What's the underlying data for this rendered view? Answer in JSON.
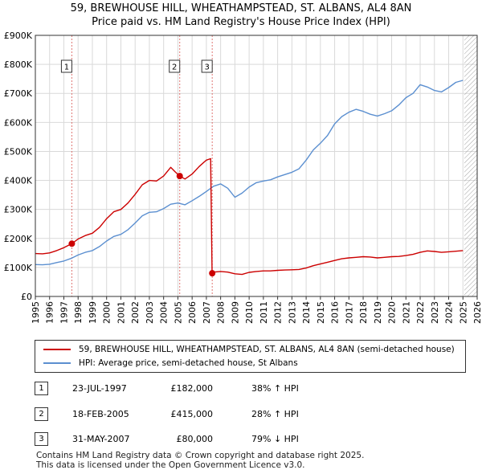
{
  "chart_data": {
    "type": "line",
    "title": "59, BREWHOUSE HILL, WHEATHAMPSTEAD, ST. ALBANS, AL4 8AN",
    "subtitle": "Price paid vs. HM Land Registry's House Price Index (HPI)",
    "xlim": [
      1995,
      2026
    ],
    "ylim": [
      0,
      900000
    ],
    "x_ticks": [
      "1995",
      "1996",
      "1997",
      "1998",
      "1999",
      "2000",
      "2001",
      "2002",
      "2003",
      "2004",
      "2005",
      "2006",
      "2007",
      "2008",
      "2009",
      "2010",
      "2011",
      "2012",
      "2013",
      "2014",
      "2015",
      "2016",
      "2017",
      "2018",
      "2019",
      "2020",
      "2021",
      "2022",
      "2023",
      "2024",
      "2025",
      "2026"
    ],
    "y_ticks": [
      {
        "value": 0,
        "label": "£0"
      },
      {
        "value": 100000,
        "label": "£100K"
      },
      {
        "value": 200000,
        "label": "£200K"
      },
      {
        "value": 300000,
        "label": "£300K"
      },
      {
        "value": 400000,
        "label": "£400K"
      },
      {
        "value": 500000,
        "label": "£500K"
      },
      {
        "value": 600000,
        "label": "£600K"
      },
      {
        "value": 700000,
        "label": "£700K"
      },
      {
        "value": 800000,
        "label": "£800K"
      },
      {
        "value": 900000,
        "label": "£900K"
      }
    ],
    "grid": true,
    "future_hatch_from": 2025.1,
    "series": [
      {
        "name": "59, BREWHOUSE HILL, WHEATHAMPSTEAD, ST. ALBANS, AL4 8AN (semi-detached house)",
        "color": "#cc0000",
        "points": [
          [
            1995.0,
            148000
          ],
          [
            1995.5,
            147000
          ],
          [
            1996.0,
            150000
          ],
          [
            1996.5,
            158000
          ],
          [
            1997.0,
            168000
          ],
          [
            1997.56,
            182000
          ],
          [
            1998.0,
            198000
          ],
          [
            1998.5,
            210000
          ],
          [
            1999.0,
            218000
          ],
          [
            1999.5,
            238000
          ],
          [
            2000.0,
            268000
          ],
          [
            2000.5,
            292000
          ],
          [
            2001.0,
            300000
          ],
          [
            2001.5,
            322000
          ],
          [
            2002.0,
            352000
          ],
          [
            2002.5,
            385000
          ],
          [
            2003.0,
            400000
          ],
          [
            2003.5,
            398000
          ],
          [
            2004.0,
            415000
          ],
          [
            2004.5,
            445000
          ],
          [
            2004.8,
            430000
          ],
          [
            2005.13,
            415000
          ],
          [
            2005.5,
            405000
          ],
          [
            2006.0,
            422000
          ],
          [
            2006.5,
            448000
          ],
          [
            2007.0,
            470000
          ],
          [
            2007.3,
            475000
          ],
          [
            2007.4,
            80000
          ],
          [
            2007.5,
            84000
          ],
          [
            2008.0,
            86000
          ],
          [
            2008.5,
            84000
          ],
          [
            2009.0,
            78000
          ],
          [
            2009.5,
            76000
          ],
          [
            2010.0,
            83000
          ],
          [
            2010.5,
            86000
          ],
          [
            2011.0,
            88000
          ],
          [
            2011.5,
            88000
          ],
          [
            2012.0,
            90000
          ],
          [
            2012.5,
            91000
          ],
          [
            2013.0,
            92000
          ],
          [
            2013.5,
            93000
          ],
          [
            2014.0,
            98000
          ],
          [
            2014.5,
            106000
          ],
          [
            2015.0,
            112000
          ],
          [
            2015.5,
            118000
          ],
          [
            2016.0,
            124000
          ],
          [
            2016.5,
            130000
          ],
          [
            2017.0,
            133000
          ],
          [
            2017.5,
            135000
          ],
          [
            2018.0,
            137000
          ],
          [
            2018.5,
            136000
          ],
          [
            2019.0,
            133000
          ],
          [
            2019.5,
            135000
          ],
          [
            2020.0,
            137000
          ],
          [
            2020.5,
            138000
          ],
          [
            2021.0,
            141000
          ],
          [
            2021.5,
            145000
          ],
          [
            2022.0,
            152000
          ],
          [
            2022.5,
            157000
          ],
          [
            2023.0,
            155000
          ],
          [
            2023.5,
            152000
          ],
          [
            2024.0,
            154000
          ],
          [
            2024.5,
            156000
          ],
          [
            2025.0,
            158000
          ]
        ]
      },
      {
        "name": "HPI: Average price, semi-detached house, St Albans",
        "color": "#5b8fd0",
        "points": [
          [
            1995.0,
            110000
          ],
          [
            1995.5,
            109000
          ],
          [
            1996.0,
            111000
          ],
          [
            1996.5,
            117000
          ],
          [
            1997.0,
            122000
          ],
          [
            1997.5,
            131000
          ],
          [
            1998.0,
            143000
          ],
          [
            1998.5,
            152000
          ],
          [
            1999.0,
            158000
          ],
          [
            1999.5,
            172000
          ],
          [
            2000.0,
            191000
          ],
          [
            2000.5,
            207000
          ],
          [
            2001.0,
            214000
          ],
          [
            2001.5,
            230000
          ],
          [
            2002.0,
            253000
          ],
          [
            2002.5,
            278000
          ],
          [
            2003.0,
            290000
          ],
          [
            2003.5,
            292000
          ],
          [
            2004.0,
            303000
          ],
          [
            2004.5,
            318000
          ],
          [
            2005.0,
            322000
          ],
          [
            2005.5,
            316000
          ],
          [
            2006.0,
            330000
          ],
          [
            2006.5,
            345000
          ],
          [
            2007.0,
            362000
          ],
          [
            2007.5,
            380000
          ],
          [
            2008.0,
            388000
          ],
          [
            2008.5,
            373000
          ],
          [
            2009.0,
            342000
          ],
          [
            2009.5,
            356000
          ],
          [
            2010.0,
            377000
          ],
          [
            2010.5,
            392000
          ],
          [
            2011.0,
            398000
          ],
          [
            2011.5,
            402000
          ],
          [
            2012.0,
            412000
          ],
          [
            2012.5,
            420000
          ],
          [
            2013.0,
            428000
          ],
          [
            2013.5,
            440000
          ],
          [
            2014.0,
            470000
          ],
          [
            2014.5,
            505000
          ],
          [
            2015.0,
            528000
          ],
          [
            2015.5,
            555000
          ],
          [
            2016.0,
            595000
          ],
          [
            2016.5,
            620000
          ],
          [
            2017.0,
            635000
          ],
          [
            2017.5,
            645000
          ],
          [
            2018.0,
            638000
          ],
          [
            2018.5,
            628000
          ],
          [
            2019.0,
            622000
          ],
          [
            2019.5,
            630000
          ],
          [
            2020.0,
            640000
          ],
          [
            2020.5,
            660000
          ],
          [
            2021.0,
            685000
          ],
          [
            2021.5,
            700000
          ],
          [
            2022.0,
            730000
          ],
          [
            2022.5,
            722000
          ],
          [
            2023.0,
            710000
          ],
          [
            2023.5,
            705000
          ],
          [
            2024.0,
            720000
          ],
          [
            2024.5,
            738000
          ],
          [
            2025.0,
            745000
          ]
        ]
      }
    ],
    "sales": [
      {
        "label": "1",
        "x": 1997.56,
        "y": 182000
      },
      {
        "label": "2",
        "x": 2005.13,
        "y": 415000
      },
      {
        "label": "3",
        "x": 2007.41,
        "y": 80000
      }
    ]
  },
  "transactions": [
    {
      "num": "1",
      "date": "23-JUL-1997",
      "price": "£182,000",
      "hpi": "38% ↑ HPI"
    },
    {
      "num": "2",
      "date": "18-FEB-2005",
      "price": "£415,000",
      "hpi": "28% ↑ HPI"
    },
    {
      "num": "3",
      "date": "31-MAY-2007",
      "price": "£80,000",
      "hpi": "79% ↓ HPI"
    }
  ],
  "footer": {
    "line1": "Contains HM Land Registry data © Crown copyright and database right 2025.",
    "line2": "This data is licensed under the Open Government Licence v3.0."
  }
}
